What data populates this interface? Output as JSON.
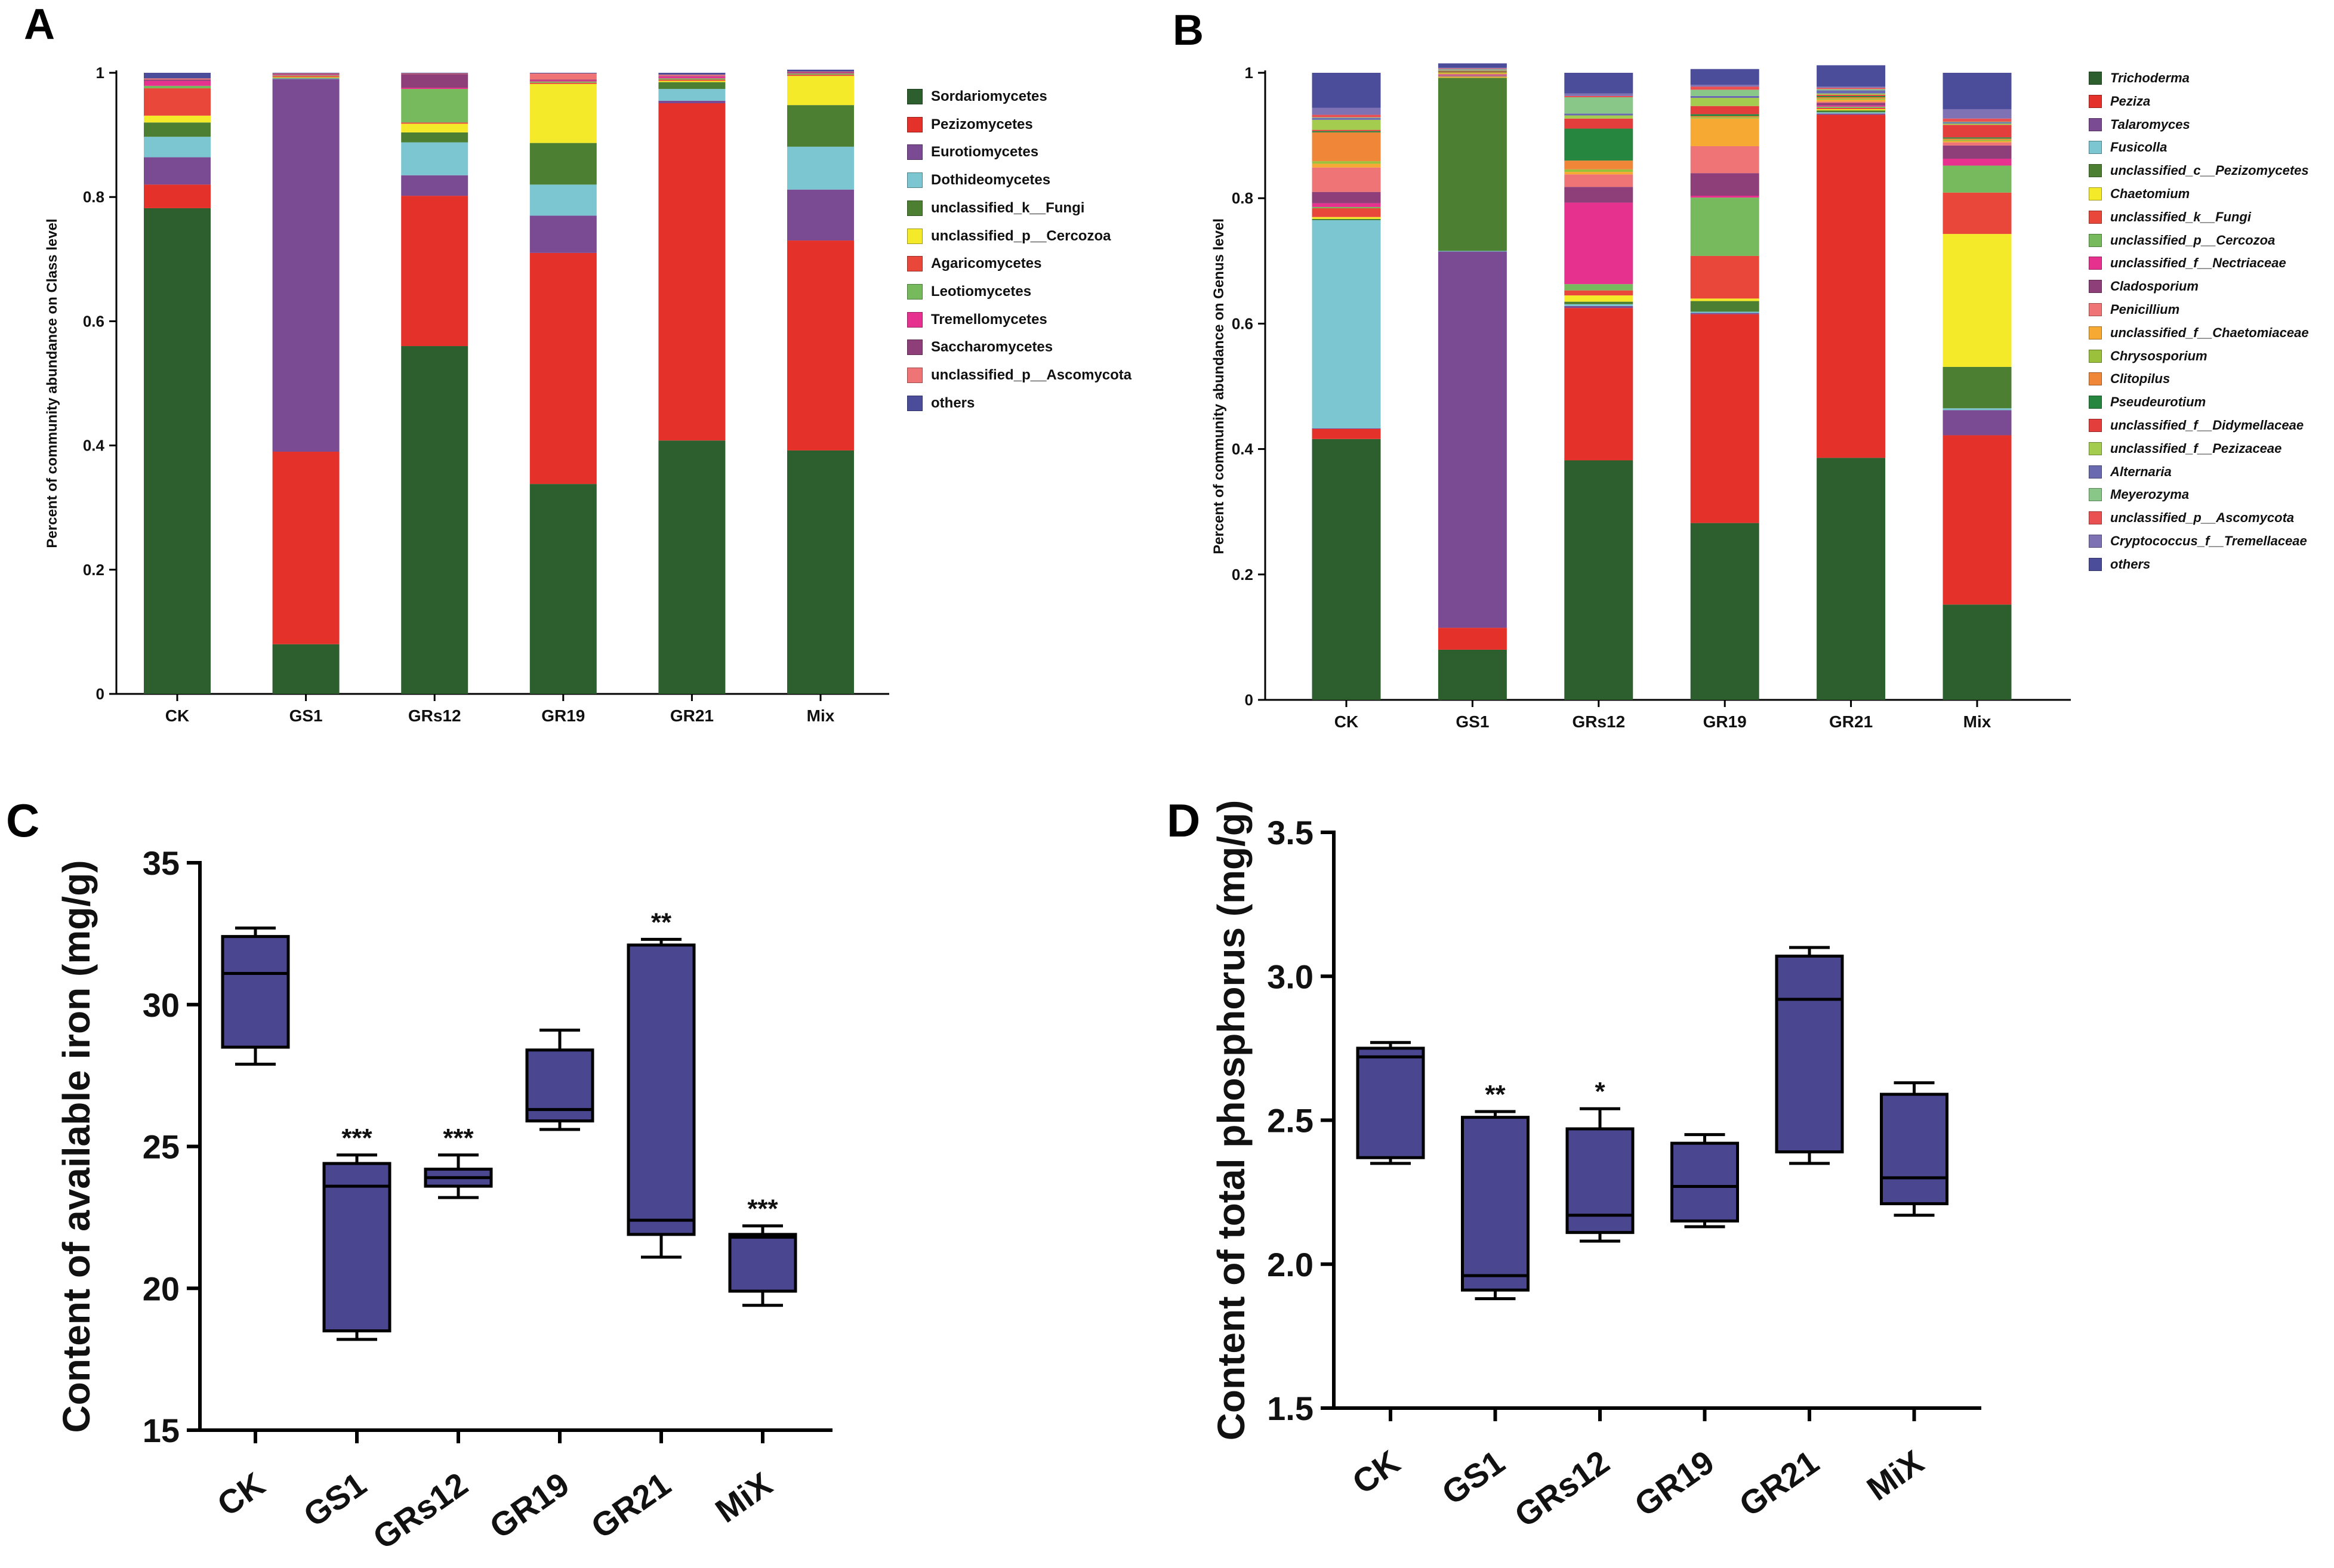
{
  "panels": {
    "a": {
      "letter": "A"
    },
    "b": {
      "letter": "B"
    },
    "c": {
      "letter": "C"
    },
    "d": {
      "letter": "D"
    }
  },
  "chart_data": [
    {
      "id": "A",
      "type": "bar",
      "stacked": true,
      "title": "",
      "xlabel": "",
      "ylabel": "Percent of community abundance on Class level",
      "ylim": [
        0,
        1
      ],
      "yticks": [
        0,
        0.2,
        0.4,
        0.6,
        0.8,
        1
      ],
      "ytick_labels": [
        "0",
        "0.2",
        "0.4",
        "0.6",
        "0.8",
        "1"
      ],
      "categories": [
        "CK",
        "GS1",
        "GRs12",
        "GR19",
        "GR21",
        "Mix"
      ],
      "legend_position": "right",
      "series": [
        {
          "name": "Sordariomycetes",
          "color": "#2d5e2e",
          "values": [
            0.782,
            0.08,
            0.56,
            0.338,
            0.408,
            0.392
          ]
        },
        {
          "name": "Pezizomycetes",
          "color": "#e4322b",
          "values": [
            0.038,
            0.31,
            0.242,
            0.372,
            0.543,
            0.338
          ]
        },
        {
          "name": "Eurotiomycetes",
          "color": "#7a4a93",
          "values": [
            0.044,
            0.6,
            0.033,
            0.06,
            0.004,
            0.082
          ]
        },
        {
          "name": "Dothideomycetes",
          "color": "#7bc6d1",
          "values": [
            0.033,
            0.001,
            0.053,
            0.05,
            0.019,
            0.069
          ]
        },
        {
          "name": "unclassified_k__Fungi",
          "color": "#4d7f33",
          "values": [
            0.023,
            0.001,
            0.016,
            0.067,
            0.011,
            0.067
          ]
        },
        {
          "name": "unclassified_p__Cercozoa",
          "color": "#f4ea2a",
          "values": [
            0.011,
            0.001,
            0.014,
            0.095,
            0.002,
            0.047
          ]
        },
        {
          "name": "Agaricomycetes",
          "color": "#e9473a",
          "values": [
            0.044,
            0.002,
            0.002,
            0.002,
            0.002,
            0.002
          ]
        },
        {
          "name": "Leotiomycetes",
          "color": "#76ba5d",
          "values": [
            0.004,
            0.001,
            0.054,
            0.002,
            0.002,
            0.002
          ]
        },
        {
          "name": "Tremellomycetes",
          "color": "#e6318f",
          "values": [
            0.008,
            0.001,
            0.002,
            0.002,
            0.003,
            0.001
          ]
        },
        {
          "name": "Saccharomycetes",
          "color": "#8e3f7a",
          "values": [
            0.002,
            0.001,
            0.022,
            0.001,
            0.001,
            0.001
          ]
        },
        {
          "name": "unclassified_p__Ascomycota",
          "color": "#ee7475",
          "values": [
            0.002,
            0.001,
            0.001,
            0.01,
            0.002,
            0.001
          ]
        },
        {
          "name": "others",
          "color": "#4b4c9a",
          "values": [
            0.009,
            0.001,
            0.001,
            0.001,
            0.003,
            0.003
          ]
        }
      ]
    },
    {
      "id": "B",
      "type": "bar",
      "stacked": true,
      "title": "",
      "xlabel": "",
      "ylabel": "Percent of community abundance on Genus level",
      "ylim": [
        0,
        1
      ],
      "yticks": [
        0,
        0.2,
        0.4,
        0.6,
        0.8,
        1
      ],
      "ytick_labels": [
        "0",
        "0.2",
        "0.4",
        "0.6",
        "0.8",
        "1"
      ],
      "categories": [
        "CK",
        "GS1",
        "GRs12",
        "GR19",
        "GR21",
        "Mix"
      ],
      "legend_position": "right",
      "series": [
        {
          "name": "Trichoderma",
          "color": "#2d5e2e",
          "values": [
            0.416,
            0.08,
            0.382,
            0.282,
            0.386,
            0.152
          ]
        },
        {
          "name": "Peziza",
          "color": "#e4322b",
          "values": [
            0.016,
            0.035,
            0.243,
            0.333,
            0.547,
            0.27
          ]
        },
        {
          "name": "Talaromyces",
          "color": "#7a4a93",
          "values": [
            0.001,
            0.6,
            0.003,
            0.002,
            0.002,
            0.04
          ]
        },
        {
          "name": "Fusicolla",
          "color": "#7bc6d1",
          "values": [
            0.332,
            0.001,
            0.003,
            0.002,
            0.002,
            0.003
          ]
        },
        {
          "name": "unclassified_c__Pezizomycetes",
          "color": "#4d7f33",
          "values": [
            0.002,
            0.276,
            0.004,
            0.017,
            0.003,
            0.066
          ]
        },
        {
          "name": "Chaetomium",
          "color": "#f4ea2a",
          "values": [
            0.003,
            0.001,
            0.01,
            0.004,
            0.002,
            0.212
          ]
        },
        {
          "name": "unclassified_k__Fungi",
          "color": "#e9473a",
          "values": [
            0.014,
            0.001,
            0.008,
            0.068,
            0.002,
            0.066
          ]
        },
        {
          "name": "unclassified_p__Cercozoa",
          "color": "#76ba5d",
          "values": [
            0.002,
            0.001,
            0.01,
            0.093,
            0.002,
            0.043
          ]
        },
        {
          "name": "unclassified_f__Nectriaceae",
          "color": "#e6318f",
          "values": [
            0.006,
            0.001,
            0.13,
            0.003,
            0.002,
            0.011
          ]
        },
        {
          "name": "Cladosporium",
          "color": "#8e3f7a",
          "values": [
            0.018,
            0.001,
            0.025,
            0.036,
            0.004,
            0.021
          ]
        },
        {
          "name": "Penicillium",
          "color": "#ee7475",
          "values": [
            0.039,
            0.001,
            0.02,
            0.043,
            0.002,
            0.005
          ]
        },
        {
          "name": "unclassified_f__Chaetomiaceae",
          "color": "#f7aa33",
          "values": [
            0.006,
            0.001,
            0.004,
            0.044,
            0.003,
            0.002
          ]
        },
        {
          "name": "Chrysosporium",
          "color": "#9bc13c",
          "values": [
            0.004,
            0.001,
            0.004,
            0.002,
            0.002,
            0.002
          ]
        },
        {
          "name": "Clitopilus",
          "color": "#ef8638",
          "values": [
            0.046,
            0.001,
            0.014,
            0.002,
            0.002,
            0.002
          ]
        },
        {
          "name": "Pseudeurotium",
          "color": "#26853f",
          "values": [
            0.002,
            0.001,
            0.051,
            0.003,
            0.002,
            0.002
          ]
        },
        {
          "name": "unclassified_f__Didymellaceae",
          "color": "#e33e3b",
          "values": [
            0.002,
            0.001,
            0.016,
            0.013,
            0.002,
            0.02
          ]
        },
        {
          "name": "unclassified_f__Pezizaceae",
          "color": "#a4cc4e",
          "values": [
            0.016,
            0.001,
            0.005,
            0.013,
            0.002,
            0.002
          ]
        },
        {
          "name": "Alternaria",
          "color": "#6a6ab0",
          "values": [
            0.003,
            0.001,
            0.003,
            0.003,
            0.005,
            0.002
          ]
        },
        {
          "name": "Meyerozyma",
          "color": "#88c787",
          "values": [
            0.001,
            0.001,
            0.026,
            0.01,
            0.002,
            0.001
          ]
        },
        {
          "name": "unclassified_p__Ascomycota",
          "color": "#ea5052",
          "values": [
            0.004,
            0.001,
            0.002,
            0.005,
            0.002,
            0.005
          ]
        },
        {
          "name": "Cryptococcus_f__Tremellaceae",
          "color": "#7e72b4",
          "values": [
            0.011,
            0.001,
            0.004,
            0.003,
            0.002,
            0.015
          ]
        },
        {
          "name": "others",
          "color": "#4b4c9a",
          "values": [
            0.056,
            0.007,
            0.033,
            0.025,
            0.034,
            0.058
          ]
        }
      ]
    },
    {
      "id": "C",
      "type": "box",
      "title": "",
      "xlabel": "",
      "ylabel": "Content of available iron (mg/g)",
      "ylim": [
        15,
        35
      ],
      "yticks": [
        15,
        20,
        25,
        30,
        35
      ],
      "categories": [
        "CK",
        "GS1",
        "GRs12",
        "GR19",
        "GR21",
        "MiX"
      ],
      "box_color": "#4a4790",
      "boxes": [
        {
          "min": 27.9,
          "q1": 28.5,
          "median": 31.1,
          "q3": 32.4,
          "max": 32.7,
          "annotation": ""
        },
        {
          "min": 18.2,
          "q1": 18.5,
          "median": 23.6,
          "q3": 24.4,
          "max": 24.7,
          "annotation": "***"
        },
        {
          "min": 23.2,
          "q1": 23.6,
          "median": 23.9,
          "q3": 24.2,
          "max": 24.7,
          "annotation": "***"
        },
        {
          "min": 25.6,
          "q1": 25.9,
          "median": 26.3,
          "q3": 28.4,
          "max": 29.1,
          "annotation": ""
        },
        {
          "min": 21.1,
          "q1": 21.9,
          "median": 22.4,
          "q3": 32.1,
          "max": 32.3,
          "annotation": "**"
        },
        {
          "min": 19.4,
          "q1": 19.9,
          "median": 21.8,
          "q3": 21.9,
          "max": 22.2,
          "annotation": "***"
        }
      ]
    },
    {
      "id": "D",
      "type": "box",
      "title": "",
      "xlabel": "",
      "ylabel": "Content of total phosphorus  (mg/g)",
      "ylim": [
        1.5,
        3.5
      ],
      "yticks": [
        1.5,
        2.0,
        2.5,
        3.0,
        3.5
      ],
      "categories": [
        "CK",
        "GS1",
        "GRs12",
        "GR19",
        "GR21",
        "MiX"
      ],
      "box_color": "#4a4790",
      "boxes": [
        {
          "min": 2.35,
          "q1": 2.37,
          "median": 2.72,
          "q3": 2.75,
          "max": 2.77,
          "annotation": ""
        },
        {
          "min": 1.88,
          "q1": 1.91,
          "median": 1.96,
          "q3": 2.51,
          "max": 2.53,
          "annotation": "**"
        },
        {
          "min": 2.08,
          "q1": 2.11,
          "median": 2.17,
          "q3": 2.47,
          "max": 2.54,
          "annotation": "*"
        },
        {
          "min": 2.13,
          "q1": 2.15,
          "median": 2.27,
          "q3": 2.42,
          "max": 2.45,
          "annotation": ""
        },
        {
          "min": 2.35,
          "q1": 2.39,
          "median": 2.92,
          "q3": 3.07,
          "max": 3.1,
          "annotation": ""
        },
        {
          "min": 2.17,
          "q1": 2.21,
          "median": 2.3,
          "q3": 2.59,
          "max": 2.63,
          "annotation": ""
        }
      ]
    }
  ]
}
